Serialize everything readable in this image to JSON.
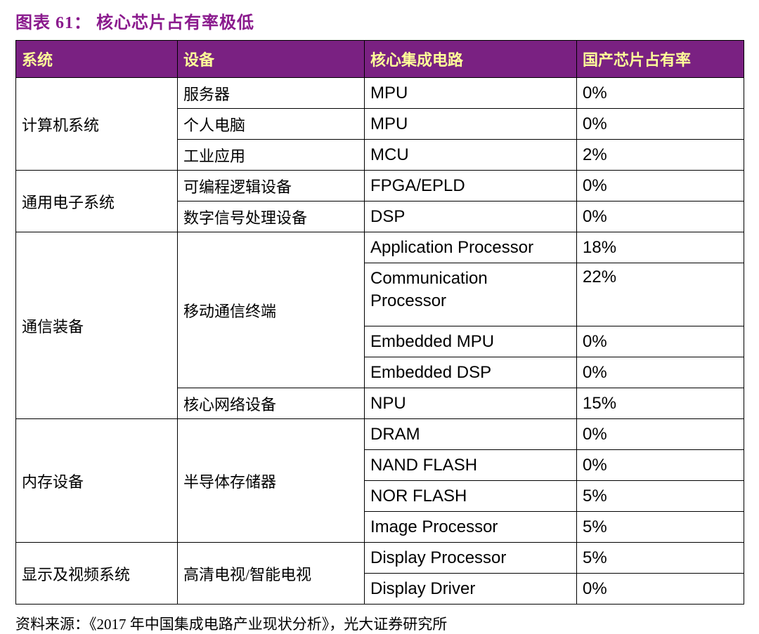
{
  "title": "图表 61： 核心芯片占有率极低",
  "source": "资料来源：《2017 年中国集成电路产业现状分析》，光大证券研究所",
  "colors": {
    "title_color": "#8A1A8D",
    "header_bg": "#7A2182",
    "header_text": "#FFFF99",
    "border_color": "#000000",
    "body_text": "#000000",
    "page_bg": "#FFFFFF"
  },
  "chart_data": {
    "type": "table",
    "figure_label": "图表 61",
    "title": "核心芯片占有率极低",
    "columns": [
      "系统",
      "设备",
      "核心集成电路",
      "国产芯片占有率"
    ],
    "rows": [
      [
        "计算机系统",
        "服务器",
        "MPU",
        "0%"
      ],
      [
        "计算机系统",
        "个人电脑",
        "MPU",
        "0%"
      ],
      [
        "计算机系统",
        "工业应用",
        "MCU",
        "2%"
      ],
      [
        "通用电子系统",
        "可编程逻辑设备",
        "FPGA/EPLD",
        "0%"
      ],
      [
        "通用电子系统",
        "数字信号处理设备",
        "DSP",
        "0%"
      ],
      [
        "通信装备",
        "移动通信终端",
        "Application Processor",
        "18%"
      ],
      [
        "通信装备",
        "移动通信终端",
        "Communication Processor",
        "22%"
      ],
      [
        "通信装备",
        "移动通信终端",
        "Embedded MPU",
        "0%"
      ],
      [
        "通信装备",
        "移动通信终端",
        "Embedded DSP",
        "0%"
      ],
      [
        "通信装备",
        "核心网络设备",
        "NPU",
        "15%"
      ],
      [
        "内存设备",
        "半导体存储器",
        "DRAM",
        "0%"
      ],
      [
        "内存设备",
        "半导体存储器",
        "NAND FLASH",
        "0%"
      ],
      [
        "内存设备",
        "半导体存储器",
        "NOR FLASH",
        "5%"
      ],
      [
        "内存设备",
        "半导体存储器",
        "Image Processor",
        "5%"
      ],
      [
        "显示及视频系统",
        "高清电视/智能电视",
        "Display Processor",
        "5%"
      ],
      [
        "显示及视频系统",
        "高清电视/智能电视",
        "Display Driver",
        "0%"
      ]
    ]
  }
}
